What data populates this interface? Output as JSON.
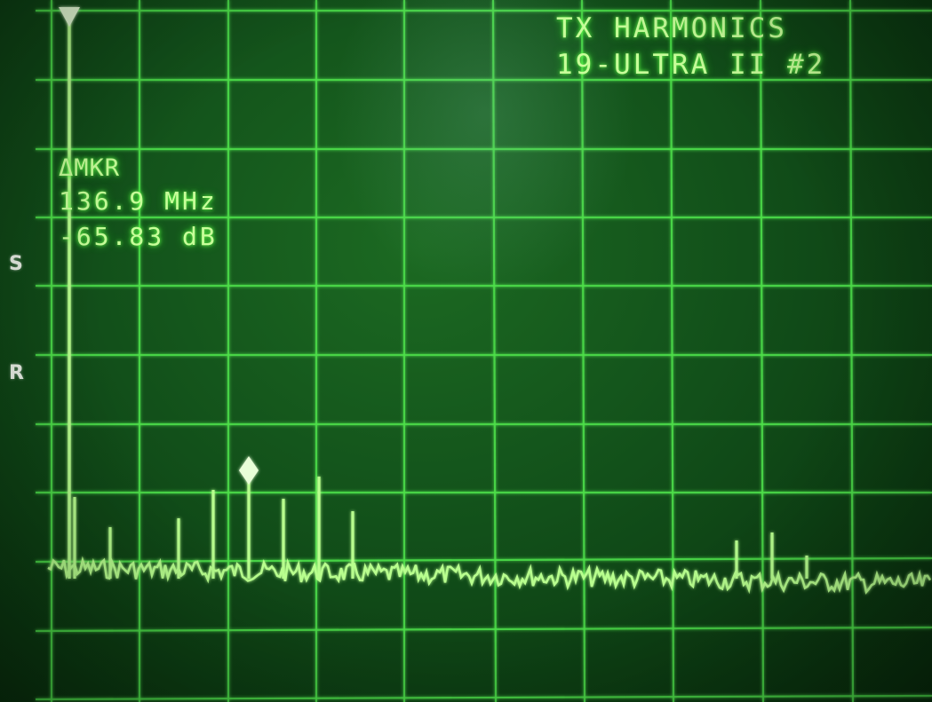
{
  "display": {
    "title_line1": "TX HARMONICS",
    "title_line2": "19-ULTRA II #2",
    "marker_label": "ΔMKR",
    "marker_frequency": "136.9 MHz",
    "marker_level": "-65.83 dB",
    "side_label_s": "S",
    "side_label_r": "R"
  },
  "colors": {
    "screen_background": "#12501a",
    "graticule": "#4ee04a",
    "trace": "#b8ff8e",
    "text": "#c8ff9a"
  },
  "graticule": {
    "vertical_divisions": 10,
    "horizontal_divisions": 10
  },
  "icons": {
    "reference_marker": "triangle-marker-icon",
    "delta_marker": "diamond-marker-icon"
  }
}
